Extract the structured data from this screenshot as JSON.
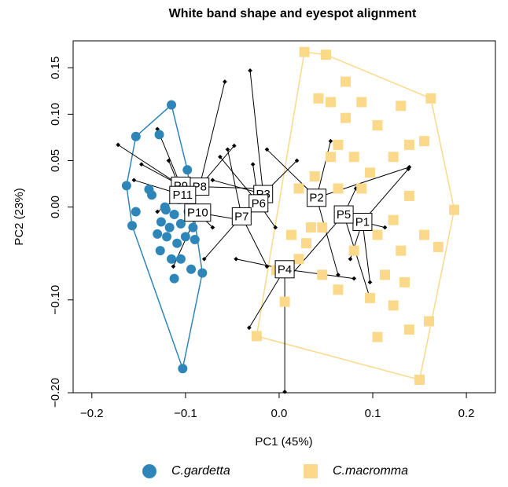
{
  "chart_data": {
    "type": "scatter",
    "title": "White band shape and eyespot alignment",
    "xlabel": "PC1 (45%)",
    "ylabel": "PC2 (23%)",
    "xlim": [
      -0.22,
      0.231
    ],
    "ylim": [
      -0.2,
      0.179
    ],
    "xticks": [
      {
        "value": -0.2,
        "label": "−0.2"
      },
      {
        "value": -0.1,
        "label": "−0.1"
      },
      {
        "value": 0,
        "label": "0.0"
      },
      0.1,
      0.2
    ],
    "yticks": [
      {
        "value": -0.2,
        "label": "−0.20"
      },
      {
        "value": -0.1,
        "label": "−0.10"
      },
      {
        "value": 0,
        "label": "0.00"
      },
      0.05,
      {
        "value": 0.1,
        "label": "0.10"
      },
      0.15
    ],
    "hulls": true,
    "series": [
      {
        "name": "C.gardetta",
        "color": "#2e86b8",
        "marker": "circle",
        "x": [
          -0.115,
          -0.153,
          -0.128,
          -0.163,
          -0.139,
          -0.136,
          -0.153,
          -0.157,
          -0.103,
          -0.098,
          -0.121,
          -0.112,
          -0.126,
          -0.13,
          -0.12,
          -0.127,
          -0.115,
          -0.105,
          -0.094,
          -0.082,
          -0.112,
          -0.1,
          -0.092,
          -0.122,
          -0.107,
          -0.097,
          -0.09,
          -0.105,
          -0.117,
          -0.109
        ],
        "values": [
          0.11,
          0.076,
          0.078,
          0.023,
          0.019,
          0.013,
          -0.005,
          -0.02,
          -0.174,
          0.04,
          -0.003,
          -0.008,
          -0.016,
          -0.029,
          -0.032,
          -0.047,
          -0.056,
          -0.056,
          -0.067,
          -0.071,
          -0.077,
          -0.032,
          -0.022,
          0,
          0.008,
          -0.005,
          -0.035,
          -0.018,
          -0.022,
          -0.039
        ]
      },
      {
        "name": "C.macromma",
        "color": "#fbd98a",
        "marker": "square",
        "x": [
          0.027,
          0.05,
          0.071,
          0.162,
          0.187,
          0.17,
          0.15,
          -0.024,
          -0.003,
          0.006,
          0.029,
          0.038,
          0.055,
          0.071,
          0.088,
          0.105,
          0.13,
          0.139,
          0.155,
          0.122,
          0.097,
          0.063,
          0.046,
          0.08,
          0.105,
          0.122,
          0.139,
          0.13,
          0.113,
          0.097,
          0.063,
          0.046,
          0.021,
          0.013,
          0.071,
          0.088,
          0.122,
          0.139,
          0.155,
          0.105,
          0.08,
          0.055,
          0.042,
          0.021,
          0.034,
          0.063,
          0.134,
          0.16
        ],
        "values": [
          0.167,
          0.164,
          0.135,
          0.117,
          -0.003,
          -0.043,
          -0.186,
          -0.139,
          -0.068,
          -0.102,
          -0.039,
          0.033,
          0.054,
          0.096,
          0.113,
          0.088,
          0.109,
          0.067,
          0.071,
          0.054,
          0.037,
          0.02,
          -0.022,
          -0.047,
          -0.03,
          -0.014,
          0.012,
          -0.047,
          -0.073,
          -0.098,
          -0.089,
          -0.073,
          -0.056,
          -0.03,
          -0.005,
          0.02,
          -0.106,
          -0.132,
          -0.03,
          -0.14,
          0.054,
          0.113,
          0.117,
          0.02,
          -0.022,
          0.067,
          -0.081,
          -0.123
        ]
      }
    ],
    "landmarks": [
      {
        "name": "P1",
        "x": 0.089,
        "y": -0.016,
        "ends_x": [
          0.138,
          0.113,
          0.076,
          0.097
        ],
        "ends_y": [
          0.041,
          -0.022,
          -0.056,
          -0.081
        ]
      },
      {
        "name": "P2",
        "x": 0.04,
        "y": 0.01,
        "ends_x": [
          0.139,
          0.063,
          -0.013,
          0.055
        ],
        "ends_y": [
          0.043,
          -0.073,
          0.062,
          0.071
        ]
      },
      {
        "name": "P3",
        "x": -0.017,
        "y": 0.014,
        "ends_x": [
          -0.031,
          0.019,
          -0.071
        ],
        "ends_y": [
          0.147,
          0.05,
          0.029
        ]
      },
      {
        "name": "P4",
        "x": 0.006,
        "y": -0.067,
        "ends_x": [
          0.006,
          -0.032,
          0.08,
          -0.046
        ],
        "ends_y": [
          -0.199,
          -0.13,
          -0.077,
          -0.056
        ]
      },
      {
        "name": "P5",
        "x": 0.069,
        "y": -0.008,
        "ends_x": [
          0.082,
          0.097,
          0.013
        ],
        "ends_y": [
          0.02,
          -0.098,
          -0.073
        ]
      },
      {
        "name": "P6",
        "x": -0.022,
        "y": 0.004,
        "ends_x": [
          -0.028,
          -0.004,
          -0.063
        ],
        "ends_y": [
          0.046,
          -0.022,
          0.054
        ]
      },
      {
        "name": "P7",
        "x": -0.04,
        "y": -0.01,
        "ends_x": [
          -0.013,
          -0.055,
          -0.08
        ],
        "ends_y": [
          -0.064,
          0.062,
          -0.056
        ]
      },
      {
        "name": "P8",
        "x": -0.085,
        "y": 0.022,
        "ends_x": [
          -0.048,
          -0.058,
          -0.021
        ],
        "ends_y": [
          0.066,
          0.135,
          0.02
        ]
      },
      {
        "name": "P9",
        "x": -0.105,
        "y": 0.023,
        "ends_x": [
          -0.172,
          -0.13,
          -0.147
        ],
        "ends_y": [
          0.067,
          0.084,
          0.046
        ]
      },
      {
        "name": "P10",
        "x": -0.087,
        "y": -0.006,
        "ends_x": [
          -0.071,
          -0.113,
          -0.046
        ],
        "ends_y": [
          -0.022,
          -0.064,
          -0.013
        ]
      },
      {
        "name": "P11",
        "x": -0.103,
        "y": 0.013,
        "ends_x": [
          -0.155,
          -0.118,
          -0.13
        ],
        "ends_y": [
          0.029,
          0.05,
          -0.005
        ]
      }
    ]
  }
}
